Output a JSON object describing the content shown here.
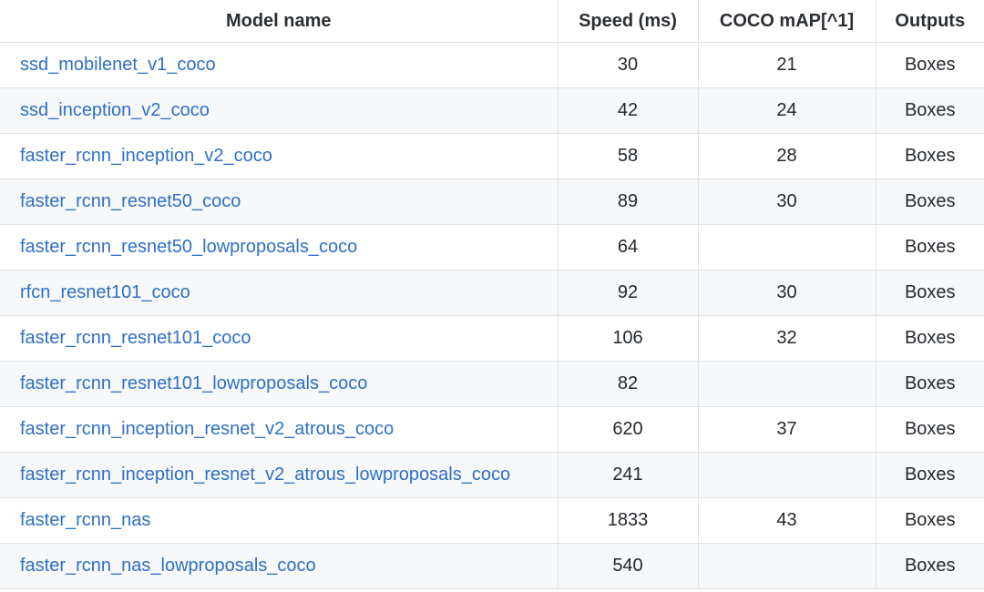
{
  "table": {
    "headers": [
      "Model name",
      "Speed (ms)",
      "COCO mAP[^1]",
      "Outputs"
    ],
    "rows": [
      {
        "name": "ssd_mobilenet_v1_coco",
        "speed": "30",
        "map": "21",
        "outputs": "Boxes"
      },
      {
        "name": "ssd_inception_v2_coco",
        "speed": "42",
        "map": "24",
        "outputs": "Boxes"
      },
      {
        "name": "faster_rcnn_inception_v2_coco",
        "speed": "58",
        "map": "28",
        "outputs": "Boxes"
      },
      {
        "name": "faster_rcnn_resnet50_coco",
        "speed": "89",
        "map": "30",
        "outputs": "Boxes"
      },
      {
        "name": "faster_rcnn_resnet50_lowproposals_coco",
        "speed": "64",
        "map": "",
        "outputs": "Boxes"
      },
      {
        "name": "rfcn_resnet101_coco",
        "speed": "92",
        "map": "30",
        "outputs": "Boxes"
      },
      {
        "name": "faster_rcnn_resnet101_coco",
        "speed": "106",
        "map": "32",
        "outputs": "Boxes"
      },
      {
        "name": "faster_rcnn_resnet101_lowproposals_coco",
        "speed": "82",
        "map": "",
        "outputs": "Boxes"
      },
      {
        "name": "faster_rcnn_inception_resnet_v2_atrous_coco",
        "speed": "620",
        "map": "37",
        "outputs": "Boxes"
      },
      {
        "name": "faster_rcnn_inception_resnet_v2_atrous_lowproposals_coco",
        "speed": "241",
        "map": "",
        "outputs": "Boxes"
      },
      {
        "name": "faster_rcnn_nas",
        "speed": "1833",
        "map": "43",
        "outputs": "Boxes"
      },
      {
        "name": "faster_rcnn_nas_lowproposals_coco",
        "speed": "540",
        "map": "",
        "outputs": "Boxes"
      }
    ]
  },
  "colors": {
    "link": "#2f6fc4",
    "text": "#24292e",
    "border": "#dfe2e5",
    "stripe": "#f6f8fa"
  }
}
